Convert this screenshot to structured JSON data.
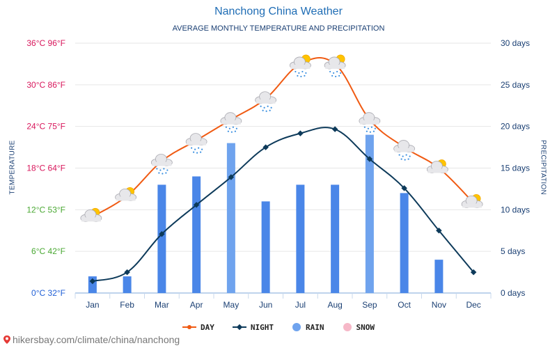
{
  "title": "Nanchong China Weather",
  "subtitle": "AVERAGE MONTHLY TEMPERATURE AND PRECIPITATION",
  "left_axis_title": "TEMPERATURE",
  "right_axis_title": "PRECIPITATION",
  "legend": {
    "day": "DAY",
    "night": "NIGHT",
    "rain": "RAIN",
    "snow": "SNOW"
  },
  "footer": "hikersbay.com/climate/china/nanchong",
  "colors": {
    "day": "#f05a12",
    "night": "#0d3a5a",
    "rain": "#4a86e8",
    "rain_light": "#6fa3ee",
    "snow": "#f6b8c8",
    "title": "#1f6db5"
  },
  "chart_data": {
    "type": "line",
    "categories": [
      "Jan",
      "Feb",
      "Mar",
      "Apr",
      "May",
      "Jun",
      "Jul",
      "Aug",
      "Sep",
      "Oct",
      "Nov",
      "Dec"
    ],
    "left_ticks": [
      "0°C 32°F",
      "6°C 42°F",
      "12°C 53°F",
      "18°C 64°F",
      "24°C 75°F",
      "30°C 86°F",
      "36°C 96°F"
    ],
    "right_ticks": [
      "0 days",
      "5 days",
      "10 days",
      "15 days",
      "20 days",
      "25 days",
      "30 days"
    ],
    "ylim_left": [
      0,
      36
    ],
    "ylim_right": [
      0,
      30
    ],
    "series": [
      {
        "name": "DAY",
        "axis": "left",
        "values": [
          11,
          14,
          19,
          22,
          25,
          28,
          33,
          33,
          25,
          21,
          18,
          13
        ]
      },
      {
        "name": "NIGHT",
        "axis": "left",
        "values": [
          1.7,
          3,
          8.5,
          12.7,
          16.7,
          21,
          23,
          23.6,
          19.3,
          15.1,
          9,
          3
        ]
      },
      {
        "name": "RAIN",
        "axis": "right",
        "type": "bar",
        "values": [
          2,
          2,
          13,
          14,
          18,
          11,
          13,
          13,
          19,
          12,
          4,
          0
        ]
      }
    ],
    "weather_icons": [
      "sun-cloud",
      "sun-cloud",
      "rain-cloud",
      "rain-cloud",
      "rain-cloud",
      "rain-cloud",
      "sun-rain-cloud",
      "sun-rain-cloud",
      "rain-cloud",
      "rain-cloud",
      "sun-cloud",
      "sun-cloud"
    ],
    "grid": true,
    "legend_position": "bottom"
  }
}
